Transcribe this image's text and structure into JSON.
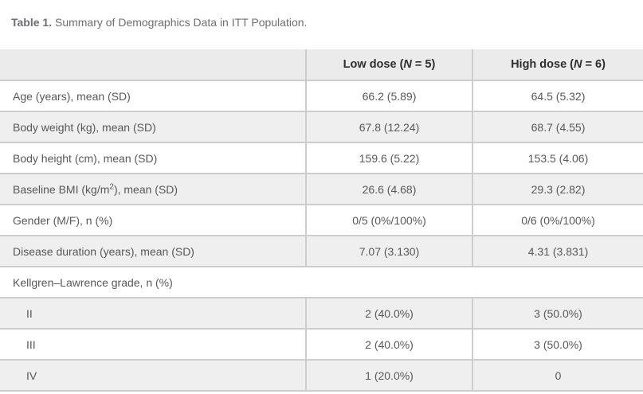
{
  "caption": {
    "label": "Table 1.",
    "text": " Summary of Demographics Data in ITT Population."
  },
  "header": {
    "empty": "",
    "low_dose": {
      "prefix": "Low dose (",
      "n": "N",
      "suffix": " = 5)"
    },
    "high_dose": {
      "prefix": "High dose (",
      "n": "N",
      "suffix": " = 6)"
    }
  },
  "rows": [
    {
      "label": "Age (years), mean (SD)",
      "low": "66.2 (5.89)",
      "high": "64.5 (5.32)"
    },
    {
      "label": "Body weight (kg), mean (SD)",
      "low": "67.8 (12.24)",
      "high": "68.7 (4.55)"
    },
    {
      "label": "Body height (cm), mean (SD)",
      "low": "159.6 (5.22)",
      "high": "153.5 (4.06)"
    },
    {
      "label_pre": "Baseline BMI (kg/m",
      "label_sup": "2",
      "label_post": "), mean (SD)",
      "low": "26.6 (4.68)",
      "high": "29.3 (2.82)"
    },
    {
      "label": "Gender (M/F), n (%)",
      "low": "0/5 (0%/100%)",
      "high": "0/6 (0%/100%)"
    },
    {
      "label": "Disease duration (years), mean (SD)",
      "low": "7.07 (3.130)",
      "high": "4.31 (3.831)"
    },
    {
      "label": "Kellgren–Lawrence grade, n (%)",
      "span": true
    },
    {
      "label": "II",
      "low": "2 (40.0%)",
      "high": "3 (50.0%)",
      "indent": true
    },
    {
      "label": "III",
      "low": "2 (40.0%)",
      "high": "3 (50.0%)",
      "indent": true
    },
    {
      "label": "IV",
      "low": "1 (20.0%)",
      "high": "0",
      "indent": true
    }
  ],
  "colors": {
    "header_bg": "#ebebeb",
    "row_alt_bg": "#efefef",
    "border": "#cdcdcd",
    "cell_text": "#57585a",
    "header_text": "#2e2e2e",
    "caption_text": "#6d6e71",
    "page_bg": "#ffffff"
  }
}
